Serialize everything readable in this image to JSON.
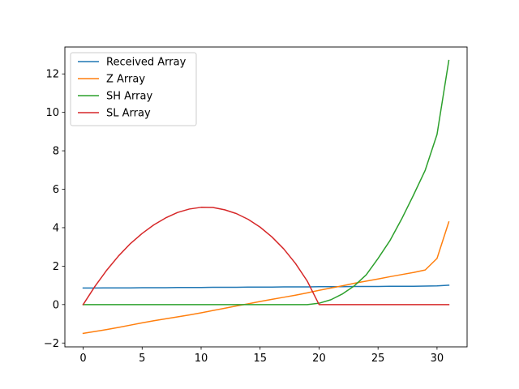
{
  "chart_data": {
    "type": "line",
    "title": "",
    "xlabel": "",
    "ylabel": "",
    "xlim": [
      -1.55,
      32.55
    ],
    "ylim": [
      -2.2,
      13.4
    ],
    "x_ticks": [
      0,
      5,
      10,
      15,
      20,
      25,
      30
    ],
    "y_ticks": [
      -2,
      0,
      2,
      4,
      6,
      8,
      10,
      12
    ],
    "grid": false,
    "legend_position": "top-left",
    "x": [
      0,
      1,
      2,
      3,
      4,
      5,
      6,
      7,
      8,
      9,
      10,
      11,
      12,
      13,
      14,
      15,
      16,
      17,
      18,
      19,
      20,
      21,
      22,
      23,
      24,
      25,
      26,
      27,
      28,
      29,
      30,
      31
    ],
    "series": [
      {
        "name": "Received Array",
        "color": "#1f77b4",
        "values": [
          0.86,
          0.86,
          0.87,
          0.87,
          0.87,
          0.88,
          0.88,
          0.88,
          0.89,
          0.89,
          0.89,
          0.9,
          0.9,
          0.9,
          0.91,
          0.91,
          0.91,
          0.92,
          0.92,
          0.92,
          0.93,
          0.93,
          0.93,
          0.94,
          0.94,
          0.94,
          0.95,
          0.95,
          0.95,
          0.96,
          0.97,
          1.01
        ]
      },
      {
        "name": "Z Array",
        "color": "#ff7f0e",
        "values": [
          -1.5,
          -1.4,
          -1.3,
          -1.19,
          -1.07,
          -0.95,
          -0.84,
          -0.74,
          -0.64,
          -0.54,
          -0.43,
          -0.31,
          -0.19,
          -0.07,
          0.04,
          0.16,
          0.27,
          0.38,
          0.49,
          0.61,
          0.74,
          0.86,
          0.98,
          1.11,
          1.22,
          1.33,
          1.45,
          1.56,
          1.67,
          1.8,
          2.4,
          4.3
        ]
      },
      {
        "name": "SH Array",
        "color": "#2ca02c",
        "values": [
          0,
          0,
          0,
          0,
          0,
          0,
          0,
          0,
          0,
          0,
          0,
          0,
          0,
          0,
          0,
          0,
          0,
          0,
          0,
          0,
          0.07,
          0.25,
          0.56,
          0.98,
          1.55,
          2.4,
          3.32,
          4.45,
          5.69,
          6.99,
          8.85,
          12.7
        ]
      },
      {
        "name": "SL Array",
        "color": "#d62728",
        "values": [
          0,
          0.95,
          1.79,
          2.53,
          3.17,
          3.7,
          4.15,
          4.51,
          4.79,
          4.97,
          5.06,
          5.05,
          4.93,
          4.73,
          4.43,
          4.03,
          3.52,
          2.9,
          2.14,
          1.22,
          0,
          0,
          0,
          0,
          0,
          0,
          0,
          0,
          0,
          0,
          0,
          0
        ]
      }
    ]
  }
}
